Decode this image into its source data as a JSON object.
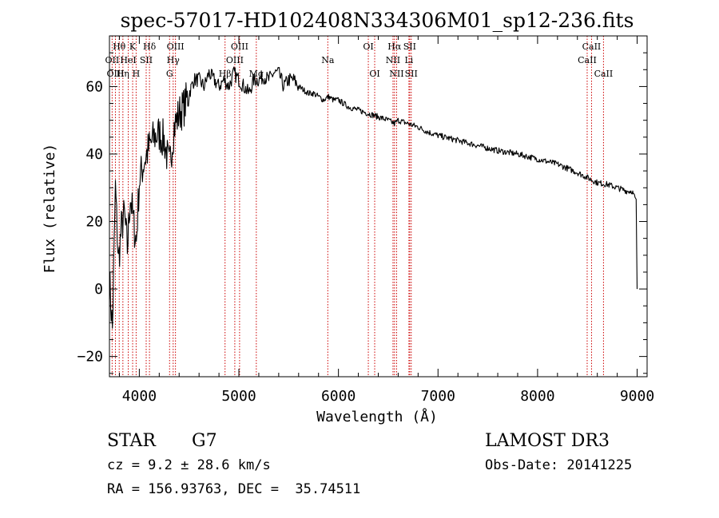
{
  "chart_data": {
    "type": "line",
    "title": "spec-57017-HD102408N334306M01_sp12-236.fits",
    "xlabel": "Wavelength (Å)",
    "ylabel": "Flux (relative)",
    "xlim": [
      3700,
      9100
    ],
    "ylim": [
      -26,
      75
    ],
    "x_ticks": [
      4000,
      5000,
      6000,
      7000,
      8000,
      9000
    ],
    "y_ticks": [
      -20,
      0,
      20,
      40,
      60
    ],
    "grid": false,
    "series": [
      {
        "name": "flux",
        "x": [
          3700,
          3730,
          3760,
          3790,
          3820,
          3850,
          3880,
          3910,
          3940,
          3970,
          4000,
          4050,
          4100,
          4150,
          4200,
          4250,
          4300,
          4350,
          4400,
          4450,
          4500,
          4550,
          4600,
          4650,
          4700,
          4750,
          4800,
          4850,
          4900,
          4950,
          5000,
          5050,
          5100,
          5150,
          5200,
          5250,
          5300,
          5350,
          5400,
          5450,
          5500,
          5550,
          5600,
          5650,
          5700,
          5750,
          5800,
          5850,
          5900,
          5950,
          6000,
          6100,
          6200,
          6300,
          6400,
          6500,
          6562,
          6600,
          6700,
          6800,
          6900,
          7000,
          7200,
          7400,
          7600,
          7800,
          8000,
          8200,
          8400,
          8500,
          8600,
          8700,
          8800,
          8900,
          8950,
          8990,
          9000
        ],
        "y": [
          3,
          -12,
          30,
          8,
          18,
          22,
          12,
          28,
          20,
          14,
          32,
          38,
          42,
          45,
          46,
          44,
          36,
          48,
          52,
          54,
          58,
          62,
          62,
          60,
          64,
          62,
          60,
          62,
          60,
          64,
          62,
          60,
          58,
          62,
          62,
          63,
          62,
          64,
          64,
          60,
          62,
          62,
          60,
          59,
          58,
          58,
          57,
          56,
          57,
          56,
          56,
          54,
          53,
          52,
          51,
          50,
          49,
          50,
          49,
          48,
          46.5,
          45.5,
          44,
          42.5,
          41,
          40,
          38.5,
          37,
          34.5,
          33,
          31.5,
          31,
          30,
          29,
          29,
          26,
          0
        ]
      }
    ],
    "absorption_features": [
      {
        "label": "Hθ",
        "wavelength": 3798,
        "row": 1
      },
      {
        "label": "OII",
        "wavelength": 3727,
        "row": 2
      },
      {
        "label": "OIII",
        "wavelength": 3760,
        "row": 3
      },
      {
        "label": "HeI",
        "wavelength": 3889,
        "row": 2
      },
      {
        "label": "Hη",
        "wavelength": 3835,
        "row": 3
      },
      {
        "label": "K",
        "wavelength": 3933,
        "row": 1
      },
      {
        "label": "SII",
        "wavelength": 4069,
        "row": 2
      },
      {
        "label": "H",
        "wavelength": 3968,
        "row": 3
      },
      {
        "label": "Hδ",
        "wavelength": 4102,
        "row": 1
      },
      {
        "label": "OIII",
        "wavelength": 4363,
        "row": 1
      },
      {
        "label": "Hγ",
        "wavelength": 4340,
        "row": 2
      },
      {
        "label": "G",
        "wavelength": 4304,
        "row": 3
      },
      {
        "label": "Hβ",
        "wavelength": 4861,
        "row": 3
      },
      {
        "label": "OIII",
        "wavelength": 4959,
        "row": 2
      },
      {
        "label": "OIII",
        "wavelength": 5007,
        "row": 1
      },
      {
        "label": "Mg",
        "wavelength": 5175,
        "row": 3
      },
      {
        "label": "Na",
        "wavelength": 5893,
        "row": 2
      },
      {
        "label": "OI",
        "wavelength": 6300,
        "row": 1
      },
      {
        "label": "OI",
        "wavelength": 6364,
        "row": 3
      },
      {
        "label": "Hα",
        "wavelength": 6563,
        "row": 1
      },
      {
        "label": "NII",
        "wavelength": 6548,
        "row": 2
      },
      {
        "label": "NII",
        "wavelength": 6584,
        "row": 3
      },
      {
        "label": "SII",
        "wavelength": 6716,
        "row": 1
      },
      {
        "label": "Li",
        "wavelength": 6708,
        "row": 2
      },
      {
        "label": "SII",
        "wavelength": 6731,
        "row": 3
      },
      {
        "label": "CaII",
        "wavelength": 8542,
        "row": 1
      },
      {
        "label": "CaII",
        "wavelength": 8498,
        "row": 2
      },
      {
        "label": "CaII",
        "wavelength": 8662,
        "row": 3
      }
    ]
  },
  "info": {
    "class_label": "STAR",
    "subclass": "G7",
    "survey": "LAMOST DR3",
    "redshift": "cz = 9.2 ± 28.6 km/s",
    "obs_date": "Obs-Date: 20141225",
    "coords": "RA = 156.93763, DEC =  35.74511"
  },
  "colors": {
    "line": "#000000",
    "marker": "#cc0000",
    "background": "#ffffff"
  }
}
